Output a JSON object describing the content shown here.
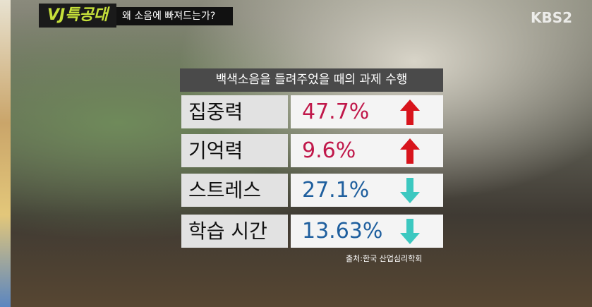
{
  "header": {
    "logo": "VJ특공대",
    "subtitle": "왜 소음에 빠져드는가?",
    "channel": "KBS2"
  },
  "table": {
    "title": "백색소음을 들려주었을 때의 과제 수행",
    "rows": [
      [
        "집중력",
        "47.7%"
      ],
      [
        "기억력",
        "9.6%"
      ],
      [
        "스트레스",
        "27.1%"
      ],
      [
        "학습 시간",
        "13.63%"
      ]
    ],
    "source": "출처:한국 산업심리학회"
  }
}
